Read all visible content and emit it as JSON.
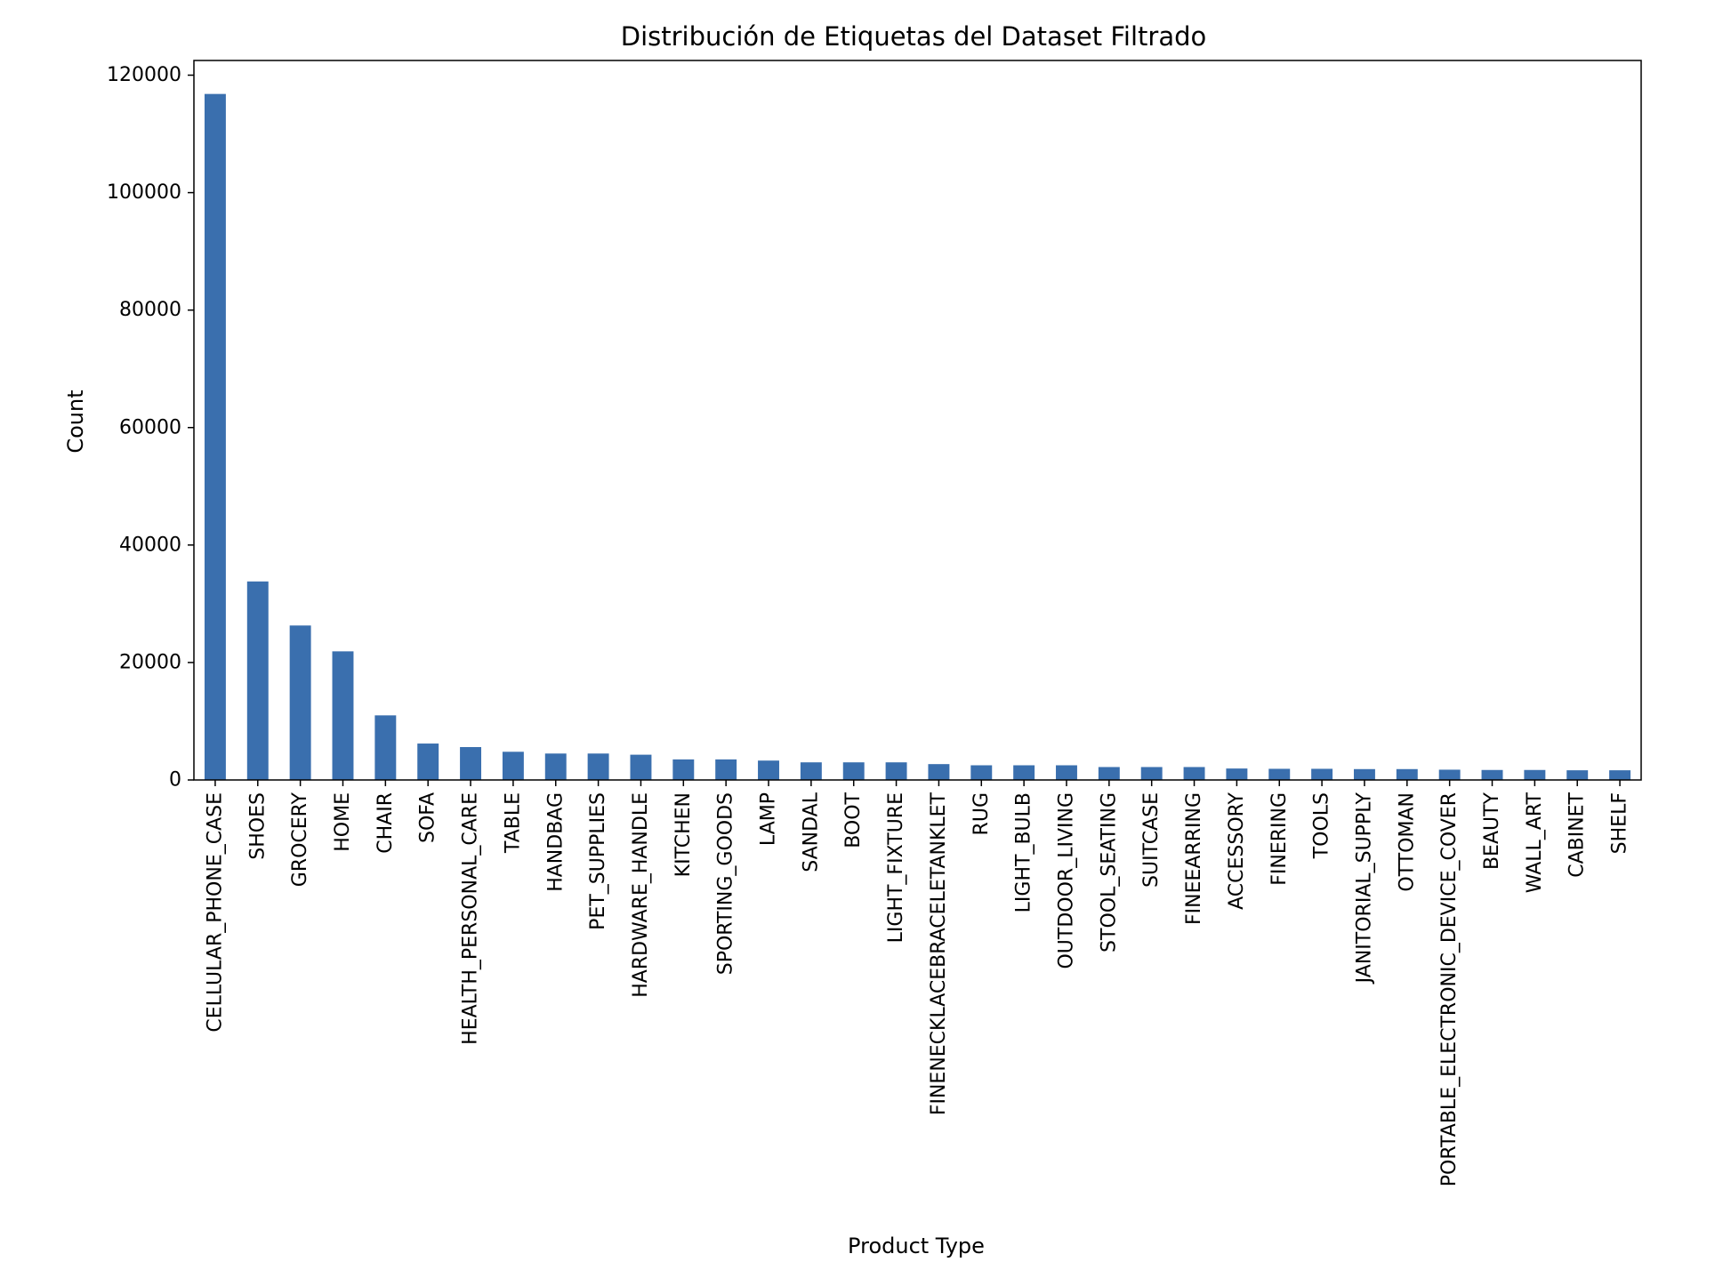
{
  "chart_data": {
    "type": "bar",
    "title": "Distribución de Etiquetas del Dataset Filtrado",
    "xlabel": "Product Type",
    "ylabel": "Count",
    "ylim": [
      0,
      122500
    ],
    "yticks": [
      0,
      20000,
      40000,
      60000,
      80000,
      100000,
      120000
    ],
    "ytick_labels": [
      "0",
      "20000",
      "40000",
      "60000",
      "80000",
      "100000",
      "120000"
    ],
    "bar_color": "#3a6fae",
    "grid": false,
    "legend": "none",
    "categories": [
      "CELLULAR_PHONE_CASE",
      "SHOES",
      "GROCERY",
      "HOME",
      "CHAIR",
      "SOFA",
      "HEALTH_PERSONAL_CARE",
      "TABLE",
      "HANDBAG",
      "PET_SUPPLIES",
      "HARDWARE_HANDLE",
      "KITCHEN",
      "SPORTING_GOODS",
      "LAMP",
      "SANDAL",
      "BOOT",
      "LIGHT_FIXTURE",
      "FINENECKLACEBRACELETANKLET",
      "RUG",
      "LIGHT_BULB",
      "OUTDOOR_LIVING",
      "STOOL_SEATING",
      "SUITCASE",
      "FINEEARRING",
      "ACCESSORY",
      "FINERING",
      "TOOLS",
      "JANITORIAL_SUPPLY",
      "OTTOMAN",
      "PORTABLE_ELECTRONIC_DEVICE_COVER",
      "BEAUTY",
      "WALL_ART",
      "CABINET",
      "SHELF"
    ],
    "values": [
      116800,
      33800,
      26300,
      21900,
      11000,
      6200,
      5600,
      4800,
      4500,
      4500,
      4300,
      3500,
      3500,
      3300,
      3000,
      3000,
      3000,
      2700,
      2500,
      2500,
      2500,
      2200,
      2200,
      2200,
      1950,
      1900,
      1900,
      1850,
      1850,
      1750,
      1700,
      1700,
      1650,
      1650
    ]
  }
}
